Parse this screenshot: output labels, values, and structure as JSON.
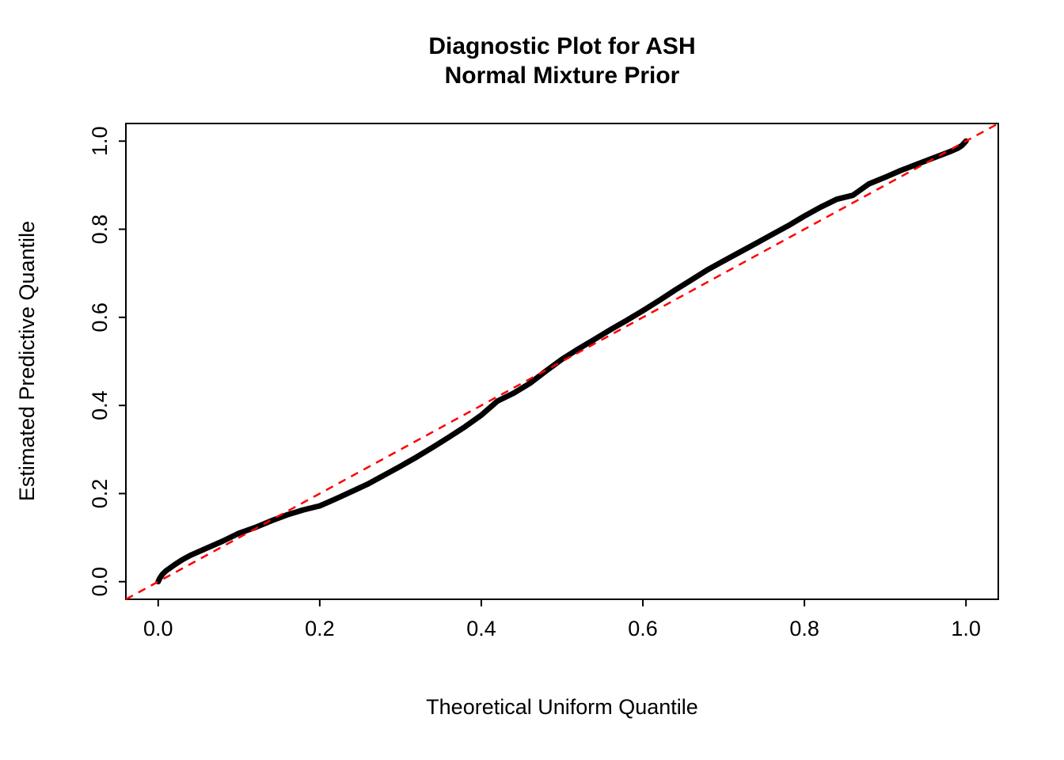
{
  "page": {
    "background": "#ffffff"
  },
  "title": {
    "line1": "Diagnostic Plot for ASH",
    "line2": "Normal Mixture Prior"
  },
  "axes": {
    "xlabel": "Theoretical Uniform Quantile",
    "ylabel": "Estimated Predictive Quantile"
  },
  "chart_data": {
    "type": "scatter",
    "title": "Diagnostic Plot for ASH Normal Mixture Prior",
    "xlabel": "Theoretical Uniform Quantile",
    "ylabel": "Estimated Predictive Quantile",
    "xlim": [
      -0.04,
      1.04
    ],
    "ylim": [
      -0.04,
      1.04
    ],
    "grid": false,
    "legend": "none",
    "x_ticks": [
      0.0,
      0.2,
      0.4,
      0.6,
      0.8,
      1.0
    ],
    "y_ticks": [
      0.0,
      0.2,
      0.4,
      0.6,
      0.8,
      1.0
    ],
    "x_tick_labels": [
      "0.0",
      "0.2",
      "0.4",
      "0.6",
      "0.8",
      "1.0"
    ],
    "y_tick_labels": [
      "0.0",
      "0.2",
      "0.4",
      "0.6",
      "0.8",
      "1.0"
    ],
    "series": [
      {
        "name": "empirical-predictive-quantiles",
        "color": "#000000",
        "style": "thick-point-curve",
        "points": [
          [
            0.0,
            0.0
          ],
          [
            0.002,
            0.008
          ],
          [
            0.005,
            0.016
          ],
          [
            0.01,
            0.025
          ],
          [
            0.02,
            0.038
          ],
          [
            0.03,
            0.05
          ],
          [
            0.04,
            0.06
          ],
          [
            0.05,
            0.068
          ],
          [
            0.06,
            0.076
          ],
          [
            0.08,
            0.092
          ],
          [
            0.1,
            0.11
          ],
          [
            0.12,
            0.123
          ],
          [
            0.14,
            0.138
          ],
          [
            0.16,
            0.152
          ],
          [
            0.18,
            0.163
          ],
          [
            0.2,
            0.172
          ],
          [
            0.22,
            0.188
          ],
          [
            0.24,
            0.205
          ],
          [
            0.26,
            0.222
          ],
          [
            0.28,
            0.242
          ],
          [
            0.3,
            0.262
          ],
          [
            0.32,
            0.283
          ],
          [
            0.34,
            0.305
          ],
          [
            0.36,
            0.328
          ],
          [
            0.38,
            0.352
          ],
          [
            0.4,
            0.378
          ],
          [
            0.42,
            0.41
          ],
          [
            0.44,
            0.428
          ],
          [
            0.46,
            0.45
          ],
          [
            0.48,
            0.478
          ],
          [
            0.5,
            0.505
          ],
          [
            0.52,
            0.528
          ],
          [
            0.54,
            0.55
          ],
          [
            0.56,
            0.572
          ],
          [
            0.58,
            0.593
          ],
          [
            0.6,
            0.615
          ],
          [
            0.62,
            0.638
          ],
          [
            0.64,
            0.662
          ],
          [
            0.66,
            0.685
          ],
          [
            0.68,
            0.708
          ],
          [
            0.7,
            0.728
          ],
          [
            0.72,
            0.748
          ],
          [
            0.74,
            0.768
          ],
          [
            0.76,
            0.788
          ],
          [
            0.78,
            0.808
          ],
          [
            0.8,
            0.83
          ],
          [
            0.82,
            0.85
          ],
          [
            0.84,
            0.868
          ],
          [
            0.86,
            0.877
          ],
          [
            0.88,
            0.903
          ],
          [
            0.9,
            0.918
          ],
          [
            0.92,
            0.934
          ],
          [
            0.94,
            0.948
          ],
          [
            0.96,
            0.962
          ],
          [
            0.98,
            0.976
          ],
          [
            0.99,
            0.984
          ],
          [
            0.995,
            0.99
          ],
          [
            1.0,
            1.0
          ]
        ]
      },
      {
        "name": "identity-reference-line",
        "color": "#FF0000",
        "style": "dashed-line",
        "points": [
          [
            -0.04,
            -0.04
          ],
          [
            1.04,
            1.04
          ]
        ]
      }
    ],
    "colors": {
      "points": "#000000",
      "reference": "#FF0000"
    }
  }
}
